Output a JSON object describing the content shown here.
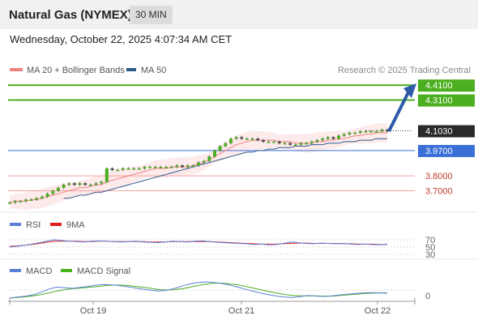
{
  "header": {
    "title": "Natural Gas (NYMEX)",
    "interval": "30 MIN",
    "timestamp": "Wednesday, October 22, 2025 4:07:34 AM CET"
  },
  "legend": {
    "ma20": "MA 20 + Bollinger Bands",
    "ma50": "MA 50",
    "copyright": "Research © 2025 Trading Central"
  },
  "colors": {
    "ma20": "#f08080",
    "ma50": "#2e5a8c",
    "green_level": "#4caf20",
    "blue_level": "#3a6fd8",
    "red_level": "#f4a0a0",
    "candle_up": "#4caf20",
    "candle_down": "#444444",
    "arrow": "#2e5aa8",
    "rsi": "#5b7fd6",
    "rsi_ma": "#e02020",
    "macd": "#5b7fd6",
    "macd_signal": "#4caf20"
  },
  "chart_data": [
    {
      "type": "line",
      "title": "Natural Gas (NYMEX) 30 MIN",
      "x_ticks": [
        "Oct 19",
        "Oct 21",
        "Oct 22"
      ],
      "y_range": [
        3.61,
        4.46
      ],
      "levels": [
        {
          "value": 4.41,
          "label": "4.4100",
          "style": "green"
        },
        {
          "value": 4.31,
          "label": "4.3100",
          "style": "green"
        },
        {
          "value": 4.103,
          "label": "4.1030",
          "style": "current"
        },
        {
          "value": 3.97,
          "label": "3.9700",
          "style": "blue"
        },
        {
          "value": 3.8,
          "label": "3.8000",
          "style": "red"
        },
        {
          "value": 3.7,
          "label": "3.7000",
          "style": "red"
        }
      ],
      "close_series": [
        3.62,
        3.63,
        3.63,
        3.64,
        3.64,
        3.65,
        3.66,
        3.68,
        3.7,
        3.72,
        3.74,
        3.75,
        3.74,
        3.75,
        3.74,
        3.74,
        3.75,
        3.76,
        3.85,
        3.84,
        3.84,
        3.85,
        3.85,
        3.85,
        3.85,
        3.86,
        3.86,
        3.86,
        3.86,
        3.86,
        3.86,
        3.87,
        3.86,
        3.87,
        3.87,
        3.89,
        3.9,
        3.93,
        3.97,
        4.0,
        4.02,
        4.05,
        4.06,
        4.05,
        4.05,
        4.05,
        4.04,
        4.03,
        4.03,
        4.03,
        4.02,
        4.02,
        4.01,
        4.01,
        4.02,
        4.02,
        4.03,
        4.04,
        4.05,
        4.06,
        4.05,
        4.07,
        4.08,
        4.09,
        4.09,
        4.1,
        4.1,
        4.1,
        4.1,
        4.11,
        4.1
      ],
      "ma20_series": [
        3.62,
        3.63,
        3.63,
        3.63,
        3.64,
        3.64,
        3.65,
        3.66,
        3.67,
        3.68,
        3.69,
        3.7,
        3.71,
        3.72,
        3.72,
        3.73,
        3.74,
        3.74,
        3.76,
        3.77,
        3.78,
        3.79,
        3.8,
        3.81,
        3.82,
        3.83,
        3.84,
        3.85,
        3.85,
        3.85,
        3.86,
        3.86,
        3.86,
        3.86,
        3.87,
        3.88,
        3.89,
        3.91,
        3.93,
        3.95,
        3.97,
        3.99,
        4.01,
        4.02,
        4.03,
        4.04,
        4.04,
        4.04,
        4.04,
        4.04,
        4.03,
        4.03,
        4.03,
        4.02,
        4.02,
        4.02,
        4.02,
        4.03,
        4.03,
        4.04,
        4.04,
        4.05,
        4.05,
        4.06,
        4.07,
        4.07,
        4.08,
        4.08,
        4.09,
        4.09,
        4.09
      ],
      "ma50_series": [
        null,
        null,
        null,
        null,
        null,
        null,
        null,
        null,
        null,
        null,
        3.65,
        3.65,
        3.66,
        3.67,
        3.67,
        3.68,
        3.69,
        3.69,
        3.7,
        3.71,
        3.72,
        3.73,
        3.74,
        3.75,
        3.76,
        3.77,
        3.78,
        3.79,
        3.8,
        3.81,
        3.82,
        3.83,
        3.84,
        3.85,
        3.86,
        3.87,
        3.88,
        3.89,
        3.9,
        3.91,
        3.92,
        3.93,
        3.94,
        3.95,
        3.96,
        3.96,
        3.97,
        3.97,
        3.98,
        3.98,
        3.99,
        3.99,
        3.99,
        4.0,
        4.0,
        4.0,
        4.01,
        4.01,
        4.01,
        4.02,
        4.02,
        4.02,
        4.03,
        4.03,
        4.03,
        4.04,
        4.04,
        4.04,
        4.05,
        4.05,
        4.05
      ]
    },
    {
      "type": "line",
      "title": "RSI",
      "series_names": [
        "RSI",
        "9MA"
      ],
      "y_ticks": [
        70,
        50,
        30
      ],
      "rsi_series": [
        50,
        52,
        55,
        58,
        62,
        66,
        70,
        68,
        66,
        65,
        64,
        66,
        67,
        66,
        65,
        64,
        65,
        66,
        64,
        63,
        62,
        64,
        66,
        65,
        64,
        66,
        67,
        65,
        63,
        62,
        61,
        60,
        59,
        57,
        58,
        56,
        57,
        60,
        64,
        62,
        60,
        59,
        61,
        60,
        59,
        60,
        58,
        57,
        58,
        57,
        56,
        58
      ],
      "ma_series": [
        52,
        53,
        55,
        57,
        60,
        63,
        66,
        66,
        66,
        66,
        65,
        65,
        66,
        66,
        65,
        65,
        65,
        65,
        65,
        64,
        64,
        64,
        65,
        65,
        65,
        65,
        65,
        65,
        64,
        63,
        62,
        61,
        60,
        59,
        58,
        58,
        58,
        59,
        60,
        61,
        61,
        60,
        60,
        60,
        60,
        59,
        59,
        58,
        58,
        58,
        57,
        57
      ]
    },
    {
      "type": "line",
      "title": "MACD",
      "series_names": [
        "MACD",
        "MACD Signal"
      ],
      "y_ticks": [
        0
      ],
      "macd_series": [
        0.0,
        0.003,
        0.006,
        0.01,
        0.018,
        0.028,
        0.034,
        0.032,
        0.03,
        0.033,
        0.036,
        0.04,
        0.042,
        0.041,
        0.038,
        0.035,
        0.031,
        0.027,
        0.024,
        0.022,
        0.024,
        0.03,
        0.038,
        0.044,
        0.048,
        0.05,
        0.048,
        0.045,
        0.04,
        0.034,
        0.027,
        0.021,
        0.015,
        0.01,
        0.006,
        0.003,
        0.002,
        0.005,
        0.008,
        0.006,
        0.005,
        0.007,
        0.01,
        0.012,
        0.014,
        0.016,
        0.017,
        0.016,
        0.015
      ],
      "signal_series": [
        0.0,
        0.002,
        0.004,
        0.007,
        0.011,
        0.016,
        0.022,
        0.026,
        0.029,
        0.031,
        0.033,
        0.035,
        0.038,
        0.04,
        0.04,
        0.039,
        0.036,
        0.033,
        0.03,
        0.026,
        0.025,
        0.026,
        0.029,
        0.034,
        0.039,
        0.043,
        0.046,
        0.046,
        0.044,
        0.041,
        0.036,
        0.031,
        0.025,
        0.02,
        0.015,
        0.011,
        0.008,
        0.007,
        0.007,
        0.007,
        0.006,
        0.006,
        0.008,
        0.01,
        0.012,
        0.014,
        0.015,
        0.016,
        0.016
      ]
    }
  ]
}
